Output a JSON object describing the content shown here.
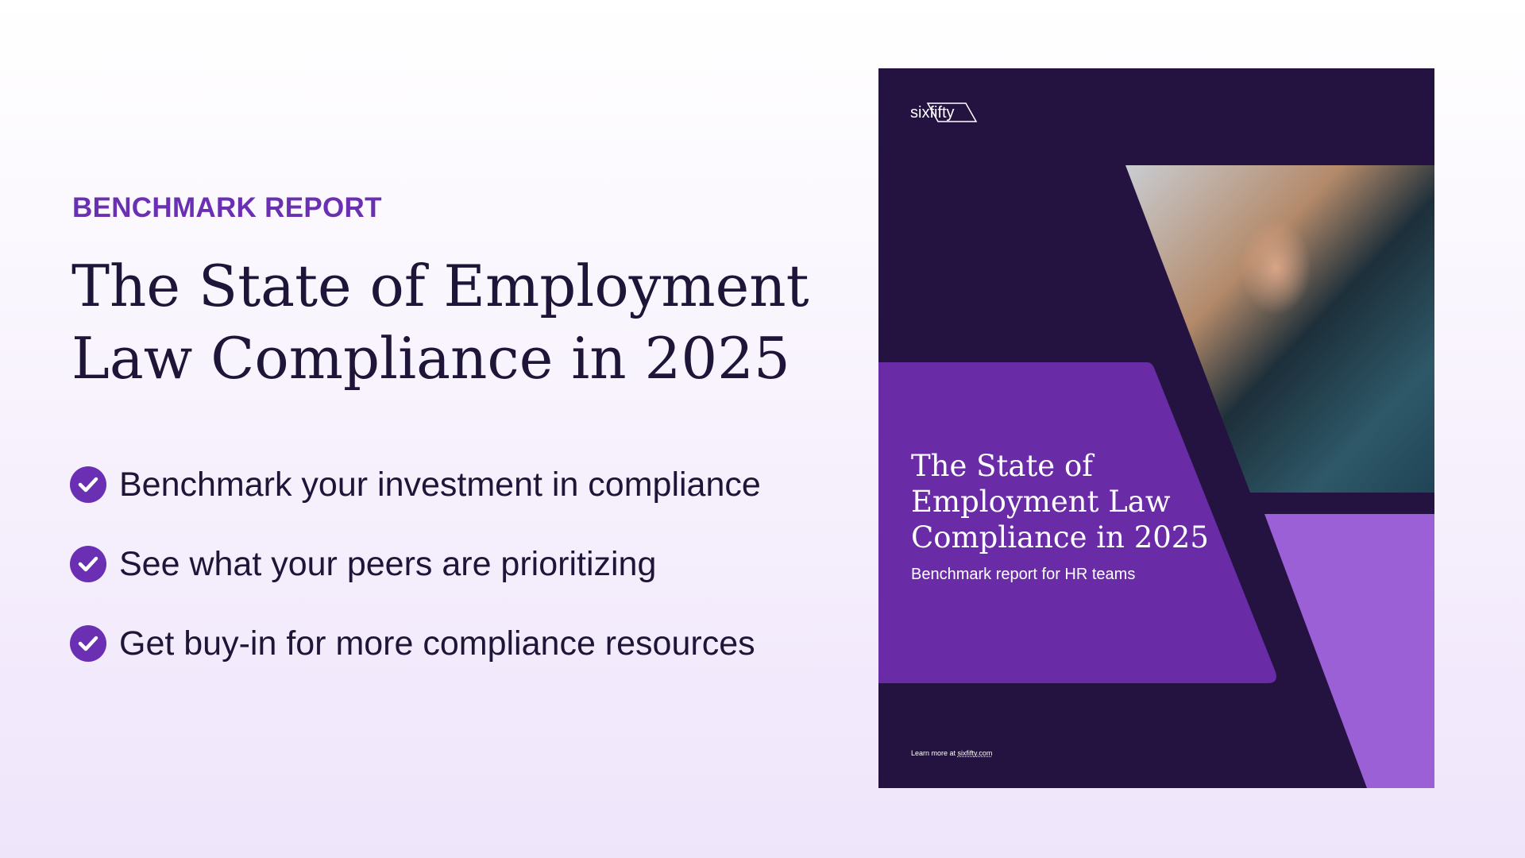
{
  "hero": {
    "eyebrow": "BENCHMARK REPORT",
    "title_line1": "The State of Employment",
    "title_line2": "Law Compliance in 2025",
    "bullets": [
      {
        "icon": "check-circle-icon",
        "text": "Benchmark your investment in compliance"
      },
      {
        "icon": "check-circle-icon",
        "text": "See what your peers are prioritizing"
      },
      {
        "icon": "check-circle-icon",
        "text": "Get buy-in for more compliance resources"
      }
    ]
  },
  "cover": {
    "logo": "sixfifty",
    "title_line1": "The State of",
    "title_line2": "Employment Law",
    "title_line3": "Compliance in 2025",
    "subtitle": "Benchmark report for HR teams",
    "footer_prefix": "Learn more at ",
    "footer_link": "sixfifty.com"
  },
  "colors": {
    "accent": "#6a2fb2",
    "dark": "#241340",
    "light_purple": "#9b5fd6",
    "text": "#1e1538"
  }
}
